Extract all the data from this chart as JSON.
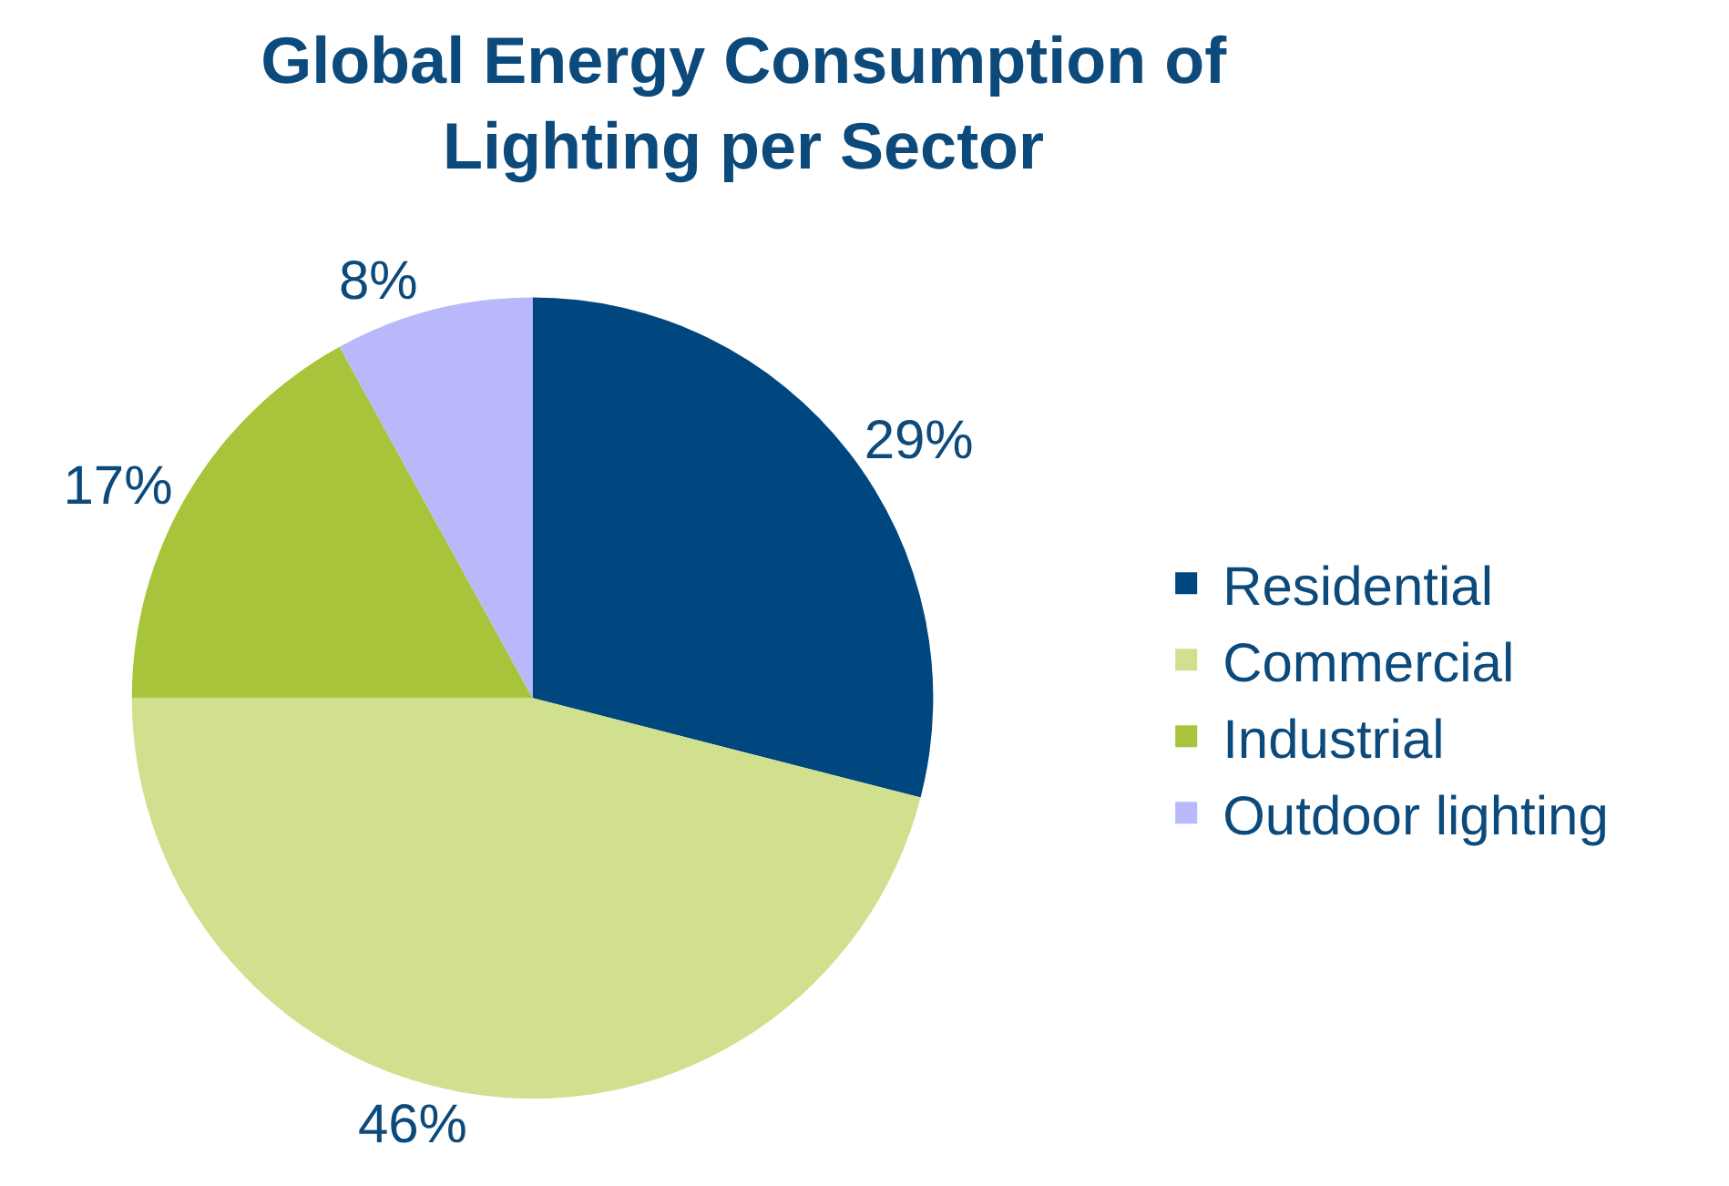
{
  "chart_data": {
    "type": "pie",
    "title": "Global Energy Consumption of\nLighting per Sector",
    "categories": [
      "Residential",
      "Commercial",
      "Industrial",
      "Outdoor lighting"
    ],
    "values": [
      29,
      46,
      17,
      8
    ],
    "value_labels": [
      "29%",
      "46%",
      "17%",
      "8%"
    ],
    "colors": [
      "#00467f",
      "#d0e08e",
      "#a8c43a",
      "#b8b8fb"
    ],
    "legend": "right"
  }
}
